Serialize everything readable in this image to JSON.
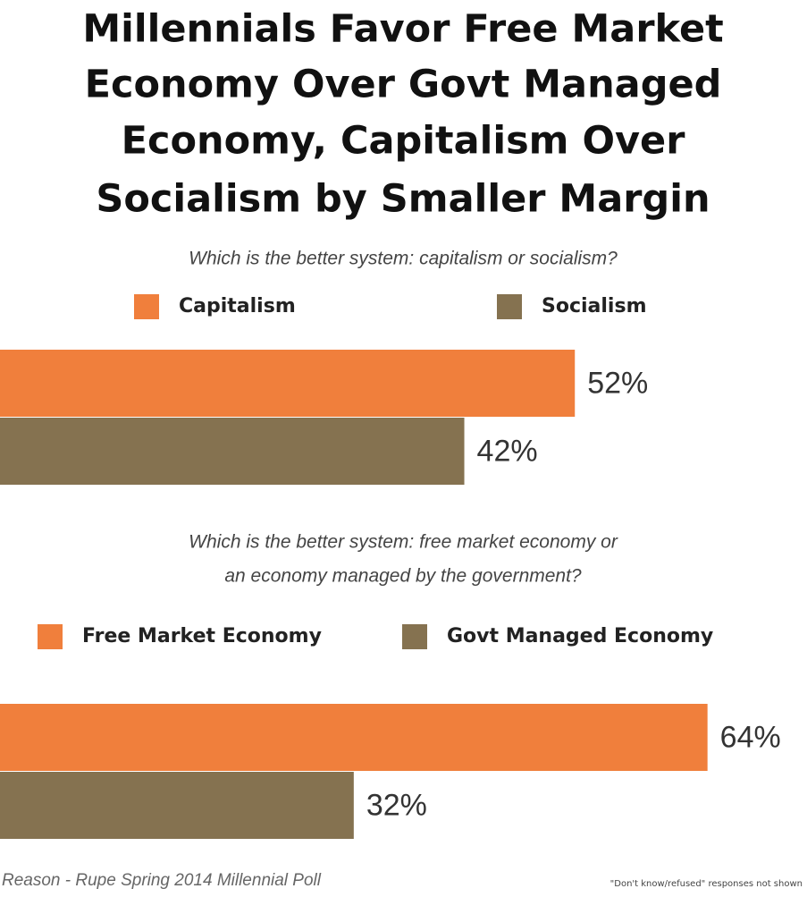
{
  "title": [
    "Millennials Favor Free Market",
    "Economy Over Govt Managed",
    "Economy, Capitalism Over",
    "Socialism by Smaller Margin"
  ],
  "chart_data": [
    {
      "type": "bar",
      "orientation": "horizontal",
      "subtitle": [
        "Which is the better system: capitalism or socialism?"
      ],
      "categories": [
        null
      ],
      "series": [
        {
          "name": "Capitalism",
          "color": "#f07f3c",
          "values": [
            52
          ],
          "value_labels": [
            "52%"
          ]
        },
        {
          "name": "Socialism",
          "color": "#857250",
          "values": [
            42
          ],
          "value_labels": [
            "42%"
          ]
        }
      ],
      "xlim": [
        0,
        73
      ]
    },
    {
      "type": "bar",
      "orientation": "horizontal",
      "subtitle": [
        "Which is the better system: free market economy or",
        "an economy managed by the government?"
      ],
      "categories": [
        null
      ],
      "series": [
        {
          "name": "Free Market Economy",
          "color": "#f07f3c",
          "values": [
            64
          ],
          "value_labels": [
            "64%"
          ]
        },
        {
          "name": "Govt Managed Economy",
          "color": "#857250",
          "values": [
            32
          ],
          "value_labels": [
            "32%"
          ]
        }
      ],
      "xlim": [
        0,
        73
      ]
    }
  ],
  "source": "Reason - Rupe Spring 2014 Millennial Poll",
  "note": "\"Don't know/refused\" responses not shown"
}
